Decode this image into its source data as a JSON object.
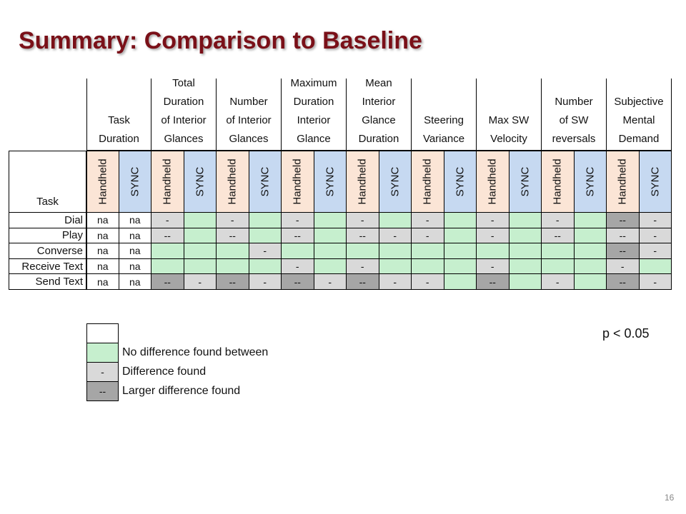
{
  "title": "Summary: Comparison to Baseline",
  "task_header": "Task",
  "metrics": [
    "Task\nDuration",
    "Total\nDuration\nof Interior\nGlances",
    "Number\nof Interior\nGlances",
    "Maximum\nDuration\nInterior\nGlance",
    "Mean\nInterior\nGlance\nDuration",
    "Steering\nVariance",
    "Max SW\nVelocity",
    "Number\nof SW\nreversals",
    "Subjective\nMental\nDemand"
  ],
  "sub_labels": [
    "Handheld",
    "SYNC"
  ],
  "tasks": [
    {
      "name": "Dial",
      "cells": [
        [
          "na",
          "w"
        ],
        [
          "na",
          "w"
        ],
        [
          "-",
          "l"
        ],
        [
          "",
          "g"
        ],
        [
          "-",
          "l"
        ],
        [
          "",
          "g"
        ],
        [
          "-",
          "l"
        ],
        [
          "",
          "g"
        ],
        [
          "-",
          "l"
        ],
        [
          "",
          "g"
        ],
        [
          "-",
          "l"
        ],
        [
          "",
          "g"
        ],
        [
          "-",
          "l"
        ],
        [
          "",
          "g"
        ],
        [
          "-",
          "l"
        ],
        [
          "",
          "g"
        ],
        [
          "--",
          "d"
        ],
        [
          "-",
          "l"
        ]
      ]
    },
    {
      "name": "Play",
      "cells": [
        [
          "na",
          "w"
        ],
        [
          "na",
          "w"
        ],
        [
          "--",
          "l"
        ],
        [
          "",
          "g"
        ],
        [
          "--",
          "l"
        ],
        [
          "",
          "g"
        ],
        [
          "--",
          "l"
        ],
        [
          "",
          "g"
        ],
        [
          "--",
          "l"
        ],
        [
          "-",
          "l"
        ],
        [
          "-",
          "l"
        ],
        [
          "",
          "g"
        ],
        [
          "-",
          "l"
        ],
        [
          "",
          "g"
        ],
        [
          "--",
          "l"
        ],
        [
          "",
          "g"
        ],
        [
          "--",
          "l"
        ],
        [
          "-",
          "l"
        ]
      ]
    },
    {
      "name": "Converse",
      "cells": [
        [
          "na",
          "w"
        ],
        [
          "na",
          "w"
        ],
        [
          "",
          "g"
        ],
        [
          "",
          "g"
        ],
        [
          "",
          "g"
        ],
        [
          "-",
          "l"
        ],
        [
          "",
          "g"
        ],
        [
          "",
          "g"
        ],
        [
          "",
          "g"
        ],
        [
          "",
          "g"
        ],
        [
          "",
          "g"
        ],
        [
          "",
          "g"
        ],
        [
          "",
          "g"
        ],
        [
          "",
          "g"
        ],
        [
          "",
          "g"
        ],
        [
          "",
          "g"
        ],
        [
          "--",
          "d"
        ],
        [
          "-",
          "l"
        ]
      ]
    },
    {
      "name": "Receive Text",
      "cells": [
        [
          "na",
          "w"
        ],
        [
          "na",
          "w"
        ],
        [
          "",
          "g"
        ],
        [
          "",
          "g"
        ],
        [
          "",
          "g"
        ],
        [
          "",
          "g"
        ],
        [
          "-",
          "l"
        ],
        [
          "",
          "g"
        ],
        [
          "-",
          "l"
        ],
        [
          "",
          "g"
        ],
        [
          "",
          "g"
        ],
        [
          "",
          "g"
        ],
        [
          "-",
          "l"
        ],
        [
          "",
          "g"
        ],
        [
          "",
          "g"
        ],
        [
          "",
          "g"
        ],
        [
          "-",
          "l"
        ],
        [
          "",
          "g"
        ]
      ]
    },
    {
      "name": "Send Text",
      "cells": [
        [
          "na",
          "w"
        ],
        [
          "na",
          "w"
        ],
        [
          "--",
          "d"
        ],
        [
          "-",
          "l"
        ],
        [
          "--",
          "d"
        ],
        [
          "-",
          "l"
        ],
        [
          "--",
          "d"
        ],
        [
          "-",
          "l"
        ],
        [
          "--",
          "d"
        ],
        [
          "-",
          "l"
        ],
        [
          "-",
          "l"
        ],
        [
          "",
          "g"
        ],
        [
          "--",
          "d"
        ],
        [
          "",
          "g"
        ],
        [
          "-",
          "l"
        ],
        [
          "",
          "g"
        ],
        [
          "--",
          "d"
        ],
        [
          "-",
          "l"
        ]
      ]
    }
  ],
  "legend": [
    {
      "symbol": "",
      "label": "",
      "kind": "w"
    },
    {
      "symbol": "",
      "label": "No difference found between",
      "kind": "g"
    },
    {
      "symbol": "-",
      "label": "Difference found",
      "kind": "l"
    },
    {
      "symbol": "--",
      "label": "Larger difference found",
      "kind": "d"
    }
  ],
  "p_value": "p < 0.05",
  "page_number": "16",
  "colors": {
    "title": "#7a1018",
    "handheld_bg": "#fbe5d6",
    "sync_bg": "#c6d9f1",
    "nodiff": "#c6efce",
    "diff": "#d9d9d9",
    "larger_diff": "#a6a6a6",
    "white": "#ffffff"
  }
}
